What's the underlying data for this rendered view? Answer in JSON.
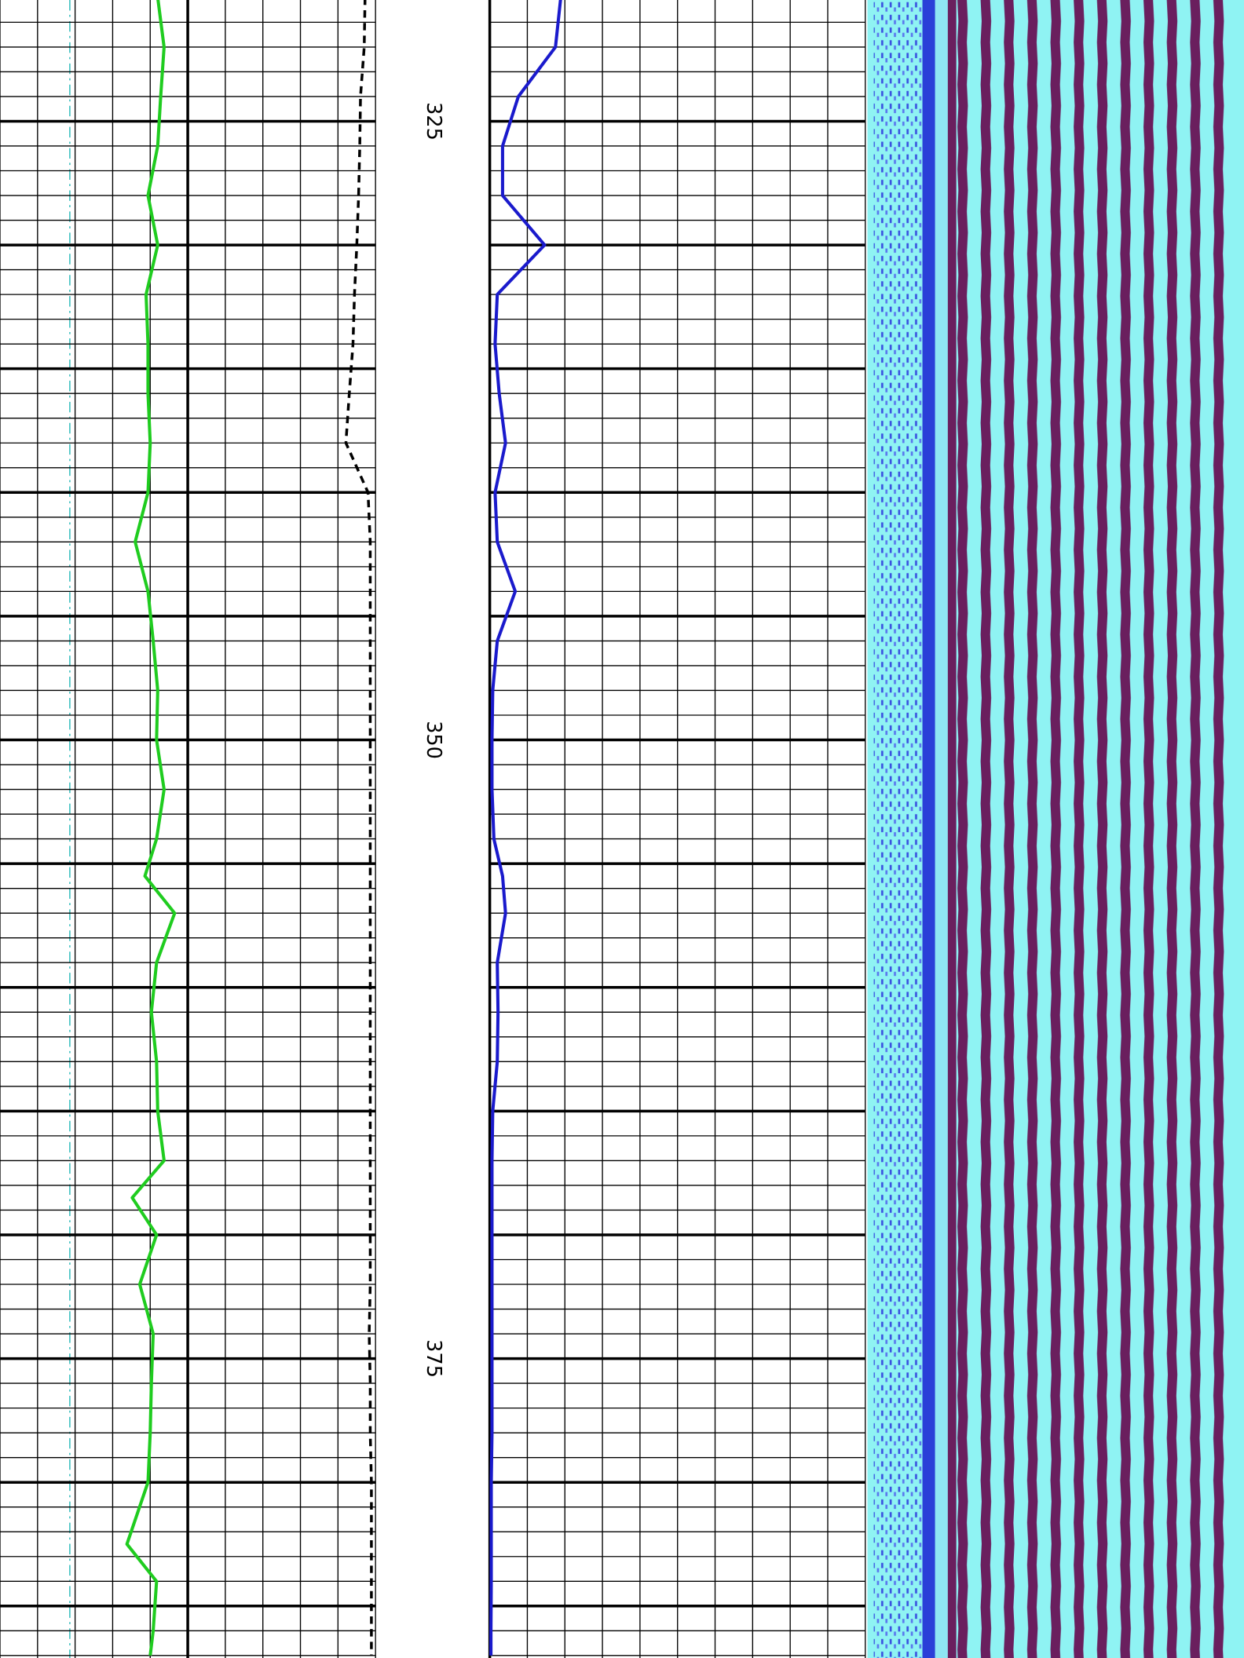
{
  "chart_data": {
    "type": "well_log",
    "ylim": [
      320.1,
      387.1
    ],
    "yticks": [
      325,
      350,
      375
    ],
    "grid": {
      "major": 5,
      "minor": 1
    },
    "tracks": [
      {
        "xlim": [
          0,
          10
        ],
        "heavy": [
          5
        ]
      },
      {
        "xlim": [
          0,
          10
        ],
        "heavy": []
      }
    ],
    "x": [
      320,
      322,
      324,
      326,
      328,
      330,
      332,
      334,
      336,
      338,
      340,
      342,
      344,
      346,
      348,
      350,
      352,
      354,
      355.5,
      357,
      359,
      361,
      363,
      365,
      367,
      368.5,
      370,
      372,
      374,
      376,
      378,
      380,
      382.5,
      384,
      386,
      387
    ],
    "series": [
      {
        "color": "#1fcc1f",
        "track": 0,
        "style": "solid",
        "values": [
          4.2,
          4.37,
          4.28,
          4.2,
          3.94,
          4.2,
          3.89,
          3.94,
          3.94,
          4.0,
          3.94,
          3.6,
          3.94,
          4.08,
          4.2,
          4.17,
          4.37,
          4.17,
          3.86,
          4.65,
          4.17,
          4.03,
          4.17,
          4.2,
          4.37,
          3.52,
          4.17,
          3.72,
          4.08,
          4.03,
          4.0,
          3.94,
          3.38,
          4.17,
          4.08,
          4.0
        ]
      },
      {
        "color": "#000000",
        "track": 0,
        "style": "dashed",
        "values": [
          9.72,
          9.7,
          9.6,
          9.58,
          9.55,
          9.5,
          9.44,
          9.4,
          9.3,
          9.21,
          9.8,
          9.86,
          9.86,
          9.86,
          9.86,
          9.86,
          9.86,
          9.86,
          9.86,
          9.86,
          9.86,
          9.86,
          9.86,
          9.86,
          9.86,
          9.86,
          9.86,
          9.86,
          9.83,
          9.86,
          9.86,
          9.89,
          9.89,
          9.89,
          9.89,
          9.89
        ]
      },
      {
        "color": "#1a1acc",
        "track": 1,
        "style": "solid",
        "values": [
          1.89,
          1.75,
          0.76,
          0.34,
          0.34,
          1.46,
          0.2,
          0.14,
          0.25,
          0.42,
          0.14,
          0.2,
          0.68,
          0.2,
          0.08,
          0.06,
          0.06,
          0.11,
          0.34,
          0.42,
          0.2,
          0.22,
          0.2,
          0.08,
          0.06,
          0.06,
          0.06,
          0.06,
          0.06,
          0.06,
          0.06,
          0.04,
          0.04,
          0.04,
          0.03,
          0.03
        ]
      }
    ]
  }
}
